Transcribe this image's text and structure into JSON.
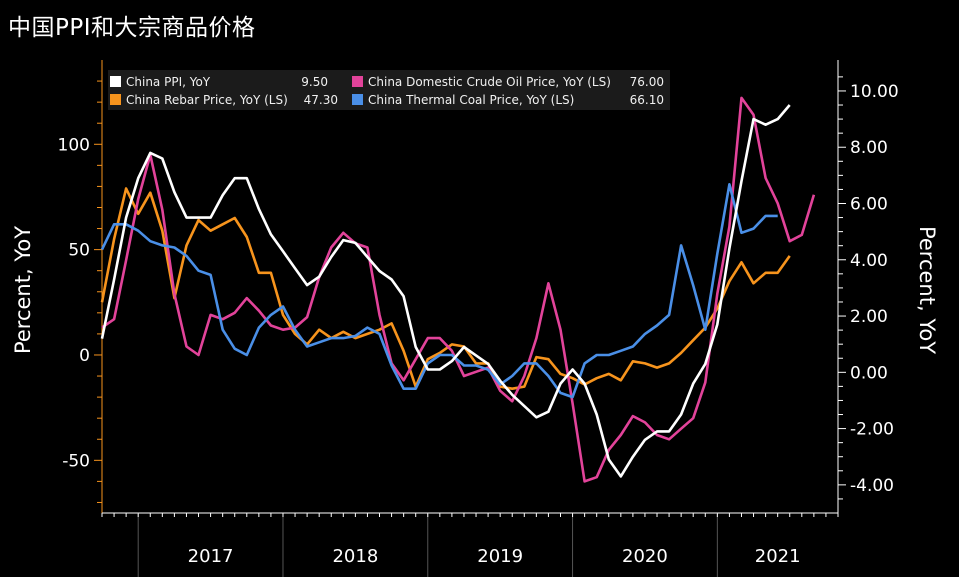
{
  "title": "中国PPI和大宗商品价格",
  "chart_data": {
    "type": "line",
    "x_axis": {
      "years": [
        "2017",
        "2018",
        "2019",
        "2020",
        "2021"
      ],
      "x_start": "2016-10",
      "x_end": "2021-11"
    },
    "y_left": {
      "label": "Percent, YoY",
      "ticks": [
        "100",
        "50",
        "0",
        "-50"
      ],
      "ylim": [
        -75,
        140
      ]
    },
    "y_right": {
      "label": "Percent, YoY",
      "ticks": [
        "10.00",
        "8.00",
        "6.00",
        "4.00",
        "2.00",
        "0.00",
        "-2.00",
        "-4.00"
      ],
      "ylim": [
        -5.0,
        11.1
      ]
    },
    "legend": {
      "placement": "top-left",
      "entries": [
        {
          "name": "China PPI, YoY",
          "last": "9.50",
          "color": "#ffffff"
        },
        {
          "name": "China Rebar Price, YoY (LS)",
          "last": "47.30",
          "color": "#f7941d"
        },
        {
          "name": "China Domestic Crude Oil Price, YoY (LS)",
          "last": "76.00",
          "color": "#e2439a"
        },
        {
          "name": "China Thermal Coal Price, YoY (LS)",
          "last": "66.10",
          "color": "#4a8fe7"
        }
      ]
    },
    "series": [
      {
        "name": "China PPI, YoY",
        "axis": "right",
        "color": "#ffffff",
        "start": "2016-10",
        "values": [
          1.2,
          3.3,
          5.5,
          6.9,
          7.8,
          7.6,
          6.4,
          5.5,
          5.5,
          5.5,
          6.3,
          6.9,
          6.9,
          5.8,
          4.9,
          4.3,
          3.7,
          3.1,
          3.4,
          4.1,
          4.7,
          4.6,
          4.1,
          3.6,
          3.3,
          2.7,
          0.9,
          0.1,
          0.1,
          0.4,
          0.9,
          0.6,
          0.3,
          -0.3,
          -0.8,
          -1.2,
          -1.6,
          -1.4,
          -0.4,
          0.1,
          -0.4,
          -1.5,
          -3.1,
          -3.7,
          -3.0,
          -2.4,
          -2.1,
          -2.1,
          -1.5,
          -0.4,
          0.3,
          1.7,
          4.4,
          6.8,
          9.0,
          8.8,
          9.0,
          9.5
        ]
      },
      {
        "name": "China Rebar Price, YoY (LS)",
        "axis": "left",
        "color": "#f7941d",
        "start": "2016-10",
        "values": [
          25,
          55,
          79,
          67,
          77,
          59,
          27,
          52,
          64,
          59,
          62,
          65,
          56,
          39,
          39,
          19,
          10,
          5,
          12,
          8,
          11,
          8,
          10,
          12,
          15,
          2,
          -15,
          -2,
          1,
          5,
          4,
          -4,
          -4,
          -15,
          -16,
          -15,
          -1,
          -2,
          -9,
          -11,
          -14,
          -11,
          -9,
          -12,
          -3,
          -4,
          -6,
          -4,
          1,
          7,
          13,
          22,
          35,
          44,
          34,
          39,
          39,
          47
        ]
      },
      {
        "name": "China Domestic Crude Oil Price, YoY (LS)",
        "axis": "left",
        "color": "#e2439a",
        "start": "2016-10",
        "values": [
          13,
          17,
          45,
          74,
          95,
          69,
          29,
          4,
          0,
          19,
          17,
          20,
          27,
          21,
          14,
          12,
          13,
          18,
          37,
          51,
          58,
          53,
          51,
          19,
          -4,
          -12,
          -2,
          8,
          8,
          2,
          -10,
          -8,
          -6,
          -17,
          -22,
          -10,
          8,
          34,
          12,
          -23,
          -60,
          -58,
          -45,
          -38,
          -29,
          -32,
          -38,
          -40,
          -35,
          -30,
          -13,
          29,
          61,
          122,
          114,
          84,
          72,
          54,
          57,
          76
        ]
      },
      {
        "name": "China Thermal Coal Price, YoY (LS)",
        "axis": "left",
        "color": "#4a8fe7",
        "start": "2016-10",
        "values": [
          50,
          62,
          62,
          59,
          54,
          52,
          51,
          47,
          40,
          38,
          12,
          3,
          0,
          13,
          19,
          23,
          12,
          4,
          6,
          8,
          8,
          9,
          13,
          10,
          -5,
          -16,
          -16,
          -4,
          0,
          0,
          -5,
          -5,
          -7,
          -14,
          -10,
          -4,
          -4,
          -10,
          -18,
          -20,
          -4,
          0,
          0,
          2,
          4,
          10,
          14,
          19,
          52,
          33,
          12,
          48,
          81,
          58,
          60,
          66,
          66
        ]
      }
    ]
  }
}
